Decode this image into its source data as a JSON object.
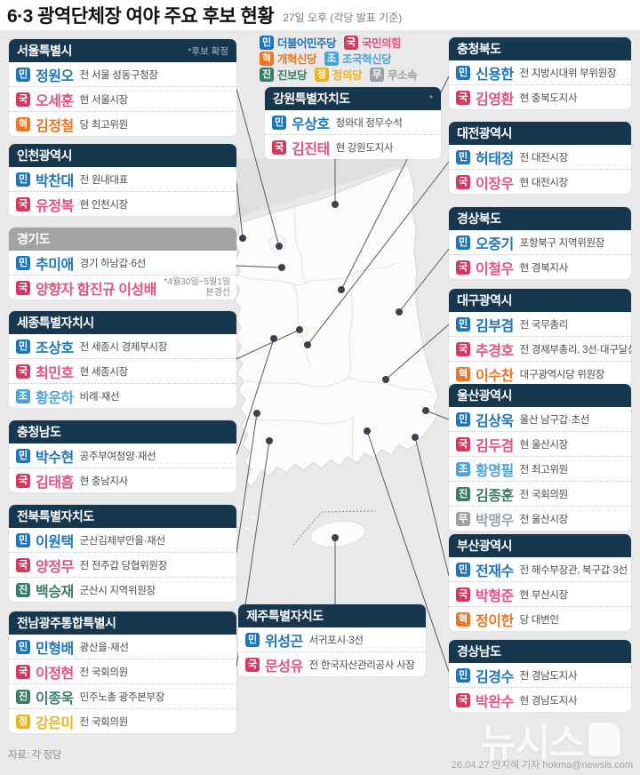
{
  "title": "6·3 광역단체장 여야 주요 후보 현황",
  "subtitle": "27일 오후  (각당 발표 기준)",
  "header_color": "#17374f",
  "background_color": "#e9e9e9",
  "legend": [
    {
      "code": "민",
      "label": "더불어민주당",
      "color": "#1d76bb",
      "text": "#1d76bb"
    },
    {
      "code": "국",
      "label": "국민의힘",
      "color": "#d6395f",
      "text": "#e8517e"
    },
    {
      "code": "혁",
      "label": "개혁신당",
      "color": "#ee7623",
      "text": "#ee7623"
    },
    {
      "code": "조",
      "label": "조국혁신당",
      "color": "#4aa3dc",
      "text": "#4aa3dc"
    },
    {
      "code": "진",
      "label": "진보당",
      "color": "#3b7d6a",
      "text": "#3b7d6a"
    },
    {
      "code": "정",
      "label": "정의당",
      "color": "#eab41f",
      "text": "#eab41f"
    },
    {
      "code": "무",
      "label": "무소속",
      "color": "#9ba1a5",
      "text": "#9ba1a5"
    }
  ],
  "regions": [
    {
      "name": "서울특별시",
      "note": "*후보 확정",
      "candidates": [
        {
          "party": "민",
          "name": "정원오",
          "desc": "전 서울 성동구청장"
        },
        {
          "party": "국",
          "name": "오세훈",
          "desc": "현 서울시장"
        },
        {
          "party": "혁",
          "name": "김정철",
          "desc": "당 최고위원"
        }
      ]
    },
    {
      "name": "인천광역시",
      "candidates": [
        {
          "party": "민",
          "name": "박찬대",
          "desc": "전 원내대표"
        },
        {
          "party": "국",
          "name": "유정복",
          "desc": "현 인천시장"
        }
      ]
    },
    {
      "name": "경기도",
      "header": "gray",
      "candidates": [
        {
          "party": "민",
          "name": "추미애",
          "desc": "경기 하남갑·6선"
        },
        {
          "party": "국",
          "name": "양향자 함진규 이성배",
          "desc": "",
          "note": "*4월30일~5월1일\n본경선"
        }
      ]
    },
    {
      "name": "세종특별자치시",
      "candidates": [
        {
          "party": "민",
          "name": "조상호",
          "desc": "전 세종시 경제부시장"
        },
        {
          "party": "국",
          "name": "최민호",
          "desc": "현 세종시장"
        },
        {
          "party": "조",
          "name": "황운하",
          "desc": "비례·재선"
        }
      ]
    },
    {
      "name": "충청남도",
      "candidates": [
        {
          "party": "민",
          "name": "박수현",
          "desc": "공주부여청양·재선"
        },
        {
          "party": "국",
          "name": "김태흠",
          "desc": "현 충남지사"
        }
      ]
    },
    {
      "name": "전북특별자치도",
      "candidates": [
        {
          "party": "민",
          "name": "이원택",
          "desc": "군산김제부안을·재선"
        },
        {
          "party": "국",
          "name": "양정무",
          "desc": "전 전주갑 당협위원장"
        },
        {
          "party": "진",
          "name": "백승재",
          "desc": "군산시 지역위원장"
        }
      ]
    },
    {
      "name": "전남광주통합특별시",
      "candidates": [
        {
          "party": "민",
          "name": "민형배",
          "desc": "광산을·재선"
        },
        {
          "party": "국",
          "name": "이정현",
          "desc": "전 국회의원"
        },
        {
          "party": "진",
          "name": "이종욱",
          "desc": "민주노총 광주본부장"
        },
        {
          "party": "정",
          "name": "강은미",
          "desc": "전 국회의원"
        }
      ]
    },
    {
      "name": "강원특별자치도",
      "note": "*",
      "candidates": [
        {
          "party": "민",
          "name": "우상호",
          "desc": "청와대 정무수석"
        },
        {
          "party": "국",
          "name": "김진태",
          "desc": "현 강원도지사"
        }
      ]
    },
    {
      "name": "제주특별자치도",
      "candidates": [
        {
          "party": "민",
          "name": "위성곤",
          "desc": "서귀포시·3선"
        },
        {
          "party": "국",
          "name": "문성유",
          "desc": "전 한국자산관리공사 사장"
        }
      ]
    },
    {
      "name": "충청북도",
      "candidates": [
        {
          "party": "민",
          "name": "신용한",
          "desc": "전 지방시대위 부위원장"
        },
        {
          "party": "국",
          "name": "김영환",
          "desc": "현 충북도지사"
        }
      ]
    },
    {
      "name": "대전광역시",
      "candidates": [
        {
          "party": "민",
          "name": "허태정",
          "desc": "전 대전시장"
        },
        {
          "party": "국",
          "name": "이장우",
          "desc": "현 대전시장"
        }
      ]
    },
    {
      "name": "경상북도",
      "candidates": [
        {
          "party": "민",
          "name": "오중기",
          "desc": "포항북구 지역위원장"
        },
        {
          "party": "국",
          "name": "이철우",
          "desc": "현 경북지사"
        }
      ]
    },
    {
      "name": "대구광역시",
      "candidates": [
        {
          "party": "민",
          "name": "김부겸",
          "desc": "전 국무총리"
        },
        {
          "party": "국",
          "name": "추경호",
          "desc": "전 경제부총리, 3선·대구달성"
        },
        {
          "party": "혁",
          "name": "이수찬",
          "desc": "대구광역시당 위원장"
        }
      ]
    },
    {
      "name": "울산광역시",
      "candidates": [
        {
          "party": "민",
          "name": "김상욱",
          "desc": "울산 남구갑·초선"
        },
        {
          "party": "국",
          "name": "김두겸",
          "desc": "현 울산시장"
        },
        {
          "party": "조",
          "name": "황명필",
          "desc": "전 최고위원"
        },
        {
          "party": "진",
          "name": "김종훈",
          "desc": "전 국회의원"
        },
        {
          "party": "무",
          "name": "박맹우",
          "desc": "전 울산시장"
        }
      ]
    },
    {
      "name": "부산광역시",
      "candidates": [
        {
          "party": "민",
          "name": "전재수",
          "desc": "전 해수부장관, 북구갑·3선"
        },
        {
          "party": "국",
          "name": "박형준",
          "desc": "현 부산시장"
        },
        {
          "party": "혁",
          "name": "정이한",
          "desc": "당 대변인"
        }
      ]
    },
    {
      "name": "경상남도",
      "candidates": [
        {
          "party": "민",
          "name": "김경수",
          "desc": "전 경남도지사"
        },
        {
          "party": "국",
          "name": "박완수",
          "desc": "현 경남도지사"
        }
      ]
    }
  ],
  "footer": {
    "source": "자료: 각 정당",
    "credit": "26.04.27 안지혜 기자 hokma@newsis.com",
    "logo": "뉴시스"
  }
}
